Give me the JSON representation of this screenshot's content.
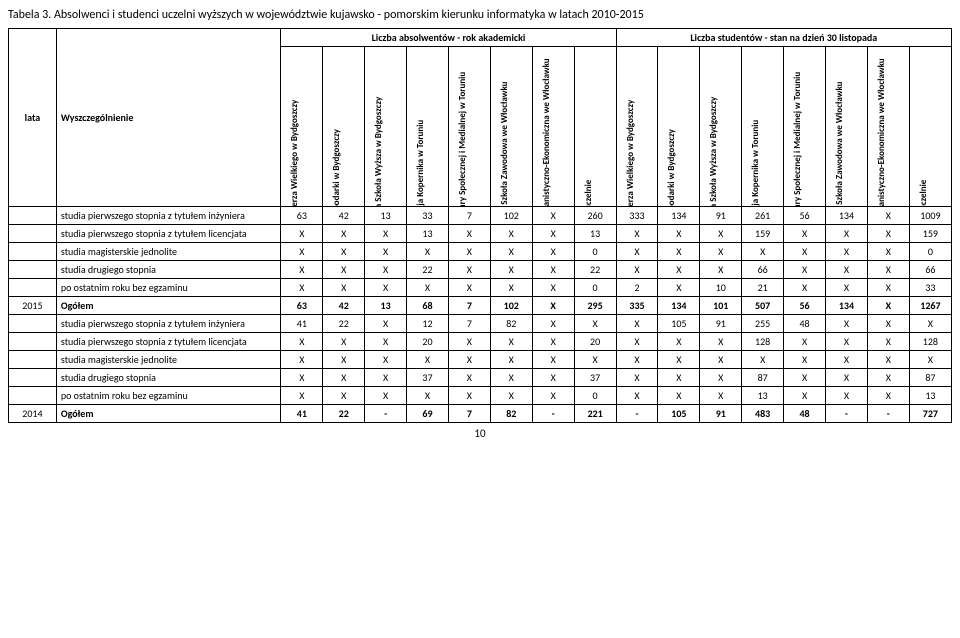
{
  "title": "Tabela 3. Absolwenci i studenci uczelni wyższych w województwie kujawsko - pomorskim kierunku informatyka w latach 2010-2015",
  "col_lata": "lata",
  "col_wysz": "Wyszczególnienie",
  "group_abs": "Liczba absolwentów - rok akademicki",
  "group_stu": "Liczba studentów - stan na dzień 30 listopada",
  "headers_abs": [
    "Uniwersytet Kazimierza Wielkiego w Bydgoszczy",
    "Wyższa Szkoła Gospodarki w Bydgoszczy",
    "Kujawsko-Pomorska Szkoła Wyższa w Bydgoszczy",
    "Uniwersytet Mikołaja Kopernika w Toruniu",
    "Wyższa Szkoła Kultury Społecznej i Medialnej w Toruniu",
    "Państwowa Wyższa Szkoła Zawodowa we Włocławku",
    "Wyższa Szkoła Humanistyczno-Ekonomiczna we Włocławku",
    "Ogółem wszystkie uczelnie"
  ],
  "headers_stu": [
    "Uniwersytet Kazimierza Wielkiego w Bydgoszczy",
    "Wyższa Szkoła Gospodarki w Bydgoszczy",
    "Kujawsko-Pomorska Szkoła Wyższa w Bydgoszczy",
    "Uniwersytet Mikołaja Kopernika w Toruniu",
    "Wyższa Szkoła Kultury Społecznej i Medialnej w Toruniu",
    "Państwowa Wyższa Szkoła Zawodowa we Włocławku",
    "Wyższa Szkoła Humanistyczno-Ekonomiczna we Włocławku",
    "Ogółem wszystkie uczelnie"
  ],
  "rows": [
    {
      "year": "",
      "label": "studia pierwszego stopnia z tytułem inżyniera",
      "v": [
        "63",
        "42",
        "13",
        "33",
        "7",
        "102",
        "X",
        "260",
        "333",
        "134",
        "91",
        "261",
        "56",
        "134",
        "X",
        "1009"
      ]
    },
    {
      "year": "",
      "label": "studia pierwszego stopnia z tytułem licencjata",
      "v": [
        "X",
        "X",
        "X",
        "13",
        "X",
        "X",
        "X",
        "13",
        "X",
        "X",
        "X",
        "159",
        "X",
        "X",
        "X",
        "159"
      ]
    },
    {
      "year": "",
      "label": "studia magisterskie jednolite",
      "v": [
        "X",
        "X",
        "X",
        "X",
        "X",
        "X",
        "X",
        "0",
        "X",
        "X",
        "X",
        "X",
        "X",
        "X",
        "X",
        "0"
      ]
    },
    {
      "year": "",
      "label": "studia drugiego stopnia",
      "v": [
        "X",
        "X",
        "X",
        "22",
        "X",
        "X",
        "X",
        "22",
        "X",
        "X",
        "X",
        "66",
        "X",
        "X",
        "X",
        "66"
      ]
    },
    {
      "year": "",
      "label": "po ostatnim roku bez egzaminu",
      "v": [
        "X",
        "X",
        "X",
        "X",
        "X",
        "X",
        "X",
        "0",
        "2",
        "X",
        "10",
        "21",
        "X",
        "X",
        "X",
        "33"
      ]
    },
    {
      "year": "2015",
      "label": "Ogółem",
      "bold": true,
      "v": [
        "63",
        "42",
        "13",
        "68",
        "7",
        "102",
        "X",
        "295",
        "335",
        "134",
        "101",
        "507",
        "56",
        "134",
        "X",
        "1267"
      ]
    },
    {
      "year": "",
      "label": "studia pierwszego stopnia z tytułem inżyniera",
      "v": [
        "41",
        "22",
        "X",
        "12",
        "7",
        "82",
        "X",
        "X",
        "X",
        "105",
        "91",
        "255",
        "48",
        "X",
        "X",
        "X"
      ]
    },
    {
      "year": "",
      "label": "studia pierwszego stopnia z tytułem licencjata",
      "v": [
        "X",
        "X",
        "X",
        "20",
        "X",
        "X",
        "X",
        "20",
        "X",
        "X",
        "X",
        "128",
        "X",
        "X",
        "X",
        "128"
      ]
    },
    {
      "year": "",
      "label": "studia magisterskie jednolite",
      "v": [
        "X",
        "X",
        "X",
        "X",
        "X",
        "X",
        "X",
        "X",
        "X",
        "X",
        "X",
        "X",
        "X",
        "X",
        "X",
        "X"
      ]
    },
    {
      "year": "",
      "label": "studia drugiego stopnia",
      "v": [
        "X",
        "X",
        "X",
        "37",
        "X",
        "X",
        "X",
        "37",
        "X",
        "X",
        "X",
        "87",
        "X",
        "X",
        "X",
        "87"
      ]
    },
    {
      "year": "",
      "label": "po ostatnim roku bez egzaminu",
      "v": [
        "X",
        "X",
        "X",
        "X",
        "X",
        "X",
        "X",
        "0",
        "X",
        "X",
        "X",
        "13",
        "X",
        "X",
        "X",
        "13"
      ]
    },
    {
      "year": "2014",
      "label": "Ogółem",
      "bold": true,
      "v": [
        "41",
        "22",
        "-",
        "69",
        "7",
        "82",
        "-",
        "221",
        "-",
        "105",
        "91",
        "483",
        "48",
        "-",
        "-",
        "727"
      ]
    }
  ],
  "page_number": "10"
}
